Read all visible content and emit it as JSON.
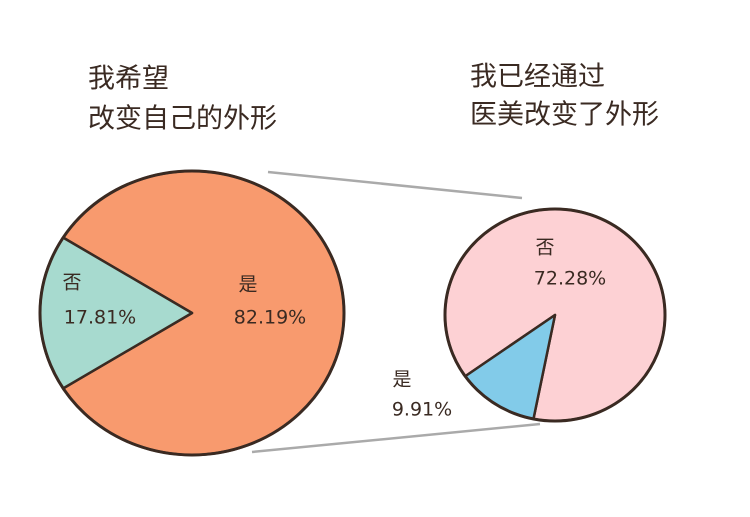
{
  "chart_data": [
    {
      "type": "pie",
      "title": [
        "我希望",
        "改变自己的外形"
      ],
      "categories": [
        "是",
        "否"
      ],
      "values": [
        82.19,
        17.81
      ],
      "value_labels": [
        "82.19%",
        "17.81%"
      ],
      "colors": [
        "#f89a6e",
        "#a7dacf"
      ]
    },
    {
      "type": "pie",
      "title": [
        "我已经通过",
        "医美改变了外形"
      ],
      "categories": [
        "否",
        "是"
      ],
      "values": [
        72.28,
        9.91
      ],
      "value_labels": [
        "72.28%",
        "9.91%"
      ],
      "colors": [
        "#fdd1d4",
        "#82cbe9"
      ]
    }
  ]
}
